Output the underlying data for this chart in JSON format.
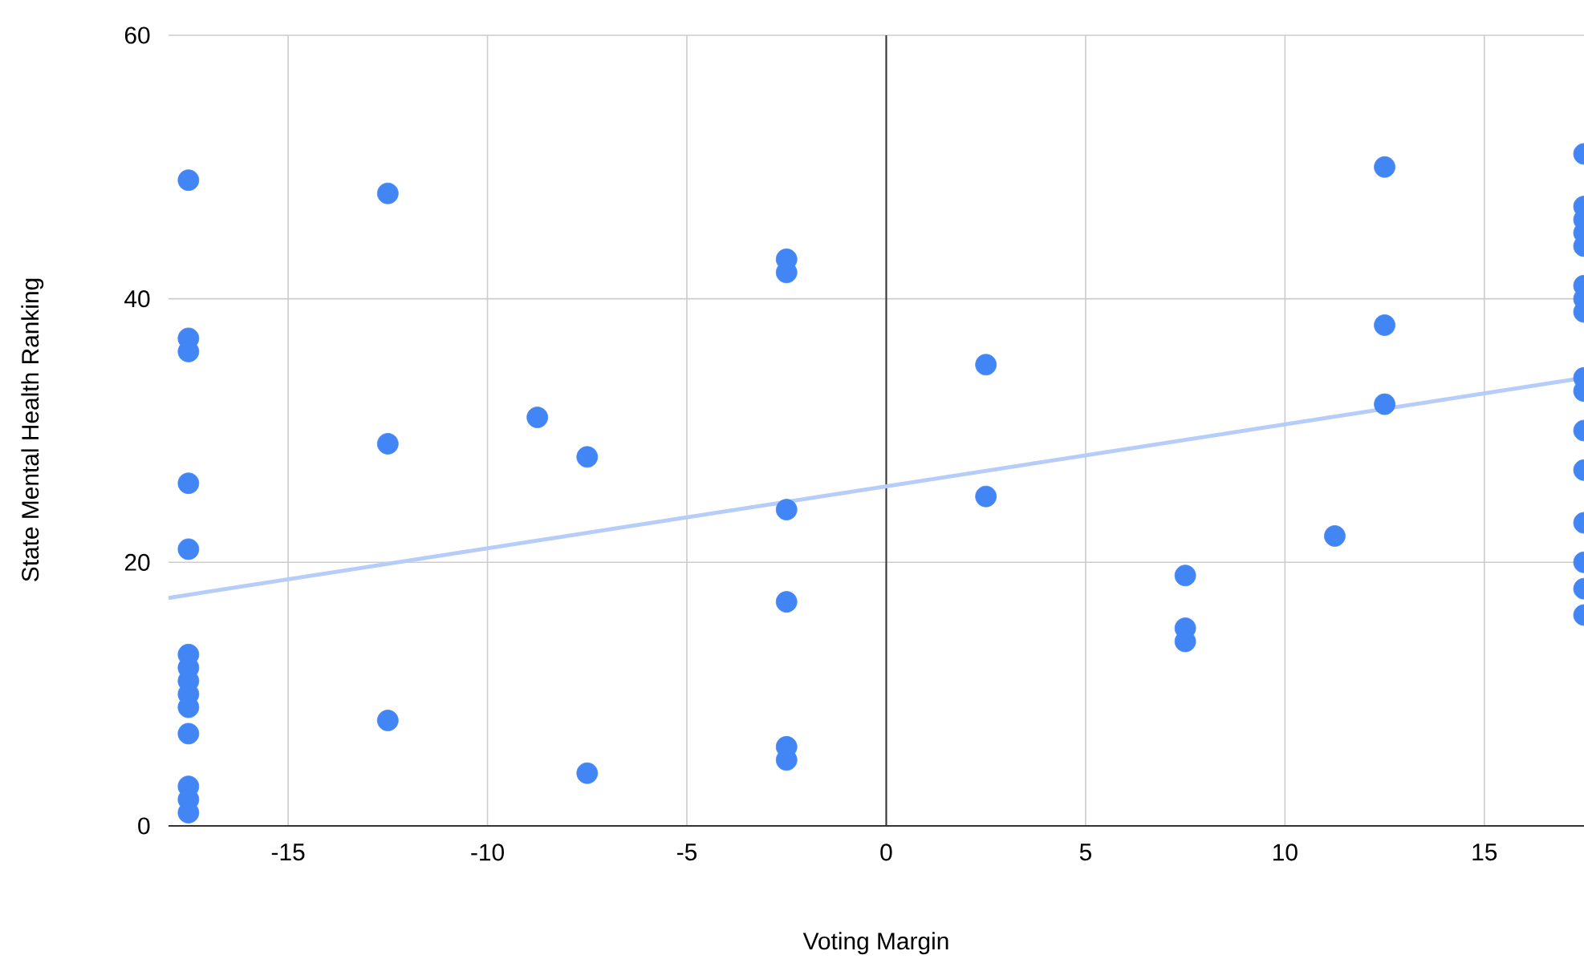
{
  "chart_data": {
    "type": "scatter",
    "xlabel": "Voting Margin",
    "ylabel": "State Mental Health Ranking",
    "xlim": [
      -18,
      17.5
    ],
    "ylim": [
      0,
      60
    ],
    "xticks": [
      -15,
      -10,
      -5,
      0,
      5,
      10,
      15
    ],
    "yticks": [
      0,
      20,
      40,
      60
    ],
    "grid": true,
    "marker": "circle",
    "ref_lines": [
      {
        "axis": "x",
        "value": 0,
        "color": "#333333"
      }
    ],
    "series": [
      {
        "color": "#4285f4",
        "x": [
          -17.5,
          -17.5,
          -17.5,
          -17.5,
          -17.5,
          -17.5,
          -17.5,
          -17.5,
          -17.5,
          -17.5,
          -17.5,
          -17.5,
          -17.5,
          -17.5,
          -12.5,
          -12.5,
          -12.5,
          -8.75,
          -7.5,
          -7.5,
          -2.5,
          -2.5,
          -2.5,
          -2.5,
          -2.5,
          -2.5,
          2.5,
          2.5,
          7.5,
          7.5,
          7.5,
          11.25,
          12.5,
          12.5,
          12.5,
          17.5,
          17.5,
          17.5,
          17.5,
          17.5,
          17.5,
          17.5,
          17.5,
          17.5,
          17.5,
          17.5,
          17.5,
          17.5,
          17.5,
          17.5,
          17.5
        ],
        "values": [
          49,
          37,
          36,
          26,
          21,
          13,
          12,
          11,
          10,
          9,
          7,
          3,
          2,
          1,
          48,
          29,
          8,
          31,
          28,
          4,
          43,
          42,
          24,
          17,
          6,
          5,
          35,
          25,
          19,
          15,
          14,
          22,
          50,
          38,
          32,
          51,
          47,
          46,
          45,
          44,
          41,
          40,
          39,
          34,
          33,
          30,
          27,
          23,
          20,
          18,
          16
        ]
      },
      {
        "type": "line",
        "color": "#b7cdf9",
        "x": [
          -18,
          17.5
        ],
        "values": [
          17.3,
          34
        ]
      }
    ]
  }
}
